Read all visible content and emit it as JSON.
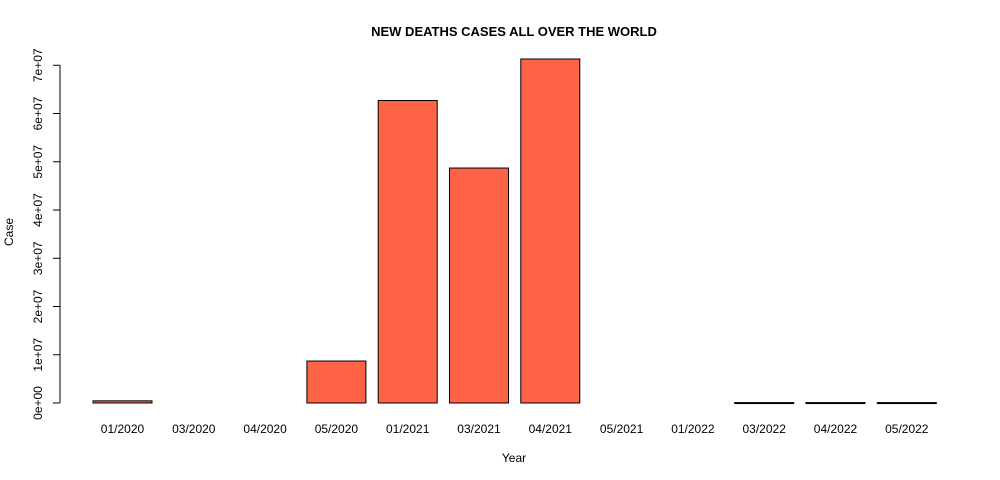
{
  "chart_data": {
    "type": "bar",
    "title": "NEW DEATHS CASES ALL OVER THE WORLD",
    "xlabel": "Year",
    "ylabel": "Case",
    "categories": [
      "01/2020",
      "03/2020",
      "04/2020",
      "05/2020",
      "01/2021",
      "03/2021",
      "04/2021",
      "05/2021",
      "01/2022",
      "03/2022",
      "04/2022",
      "05/2022"
    ],
    "values": [
      450000,
      0,
      0,
      8700000,
      62700000,
      48700000,
      71300000,
      0,
      0,
      90000,
      90000,
      90000
    ],
    "yticks": [
      0,
      10000000,
      20000000,
      30000000,
      40000000,
      50000000,
      60000000,
      70000000
    ],
    "ytick_labels": [
      "0e+00",
      "1e+07",
      "2e+07",
      "3e+07",
      "4e+07",
      "5e+07",
      "6e+07",
      "7e+07"
    ],
    "ylim": [
      0,
      71300000
    ],
    "grid": false,
    "bar_color": "#ff6347",
    "bar_border": "#000000"
  }
}
